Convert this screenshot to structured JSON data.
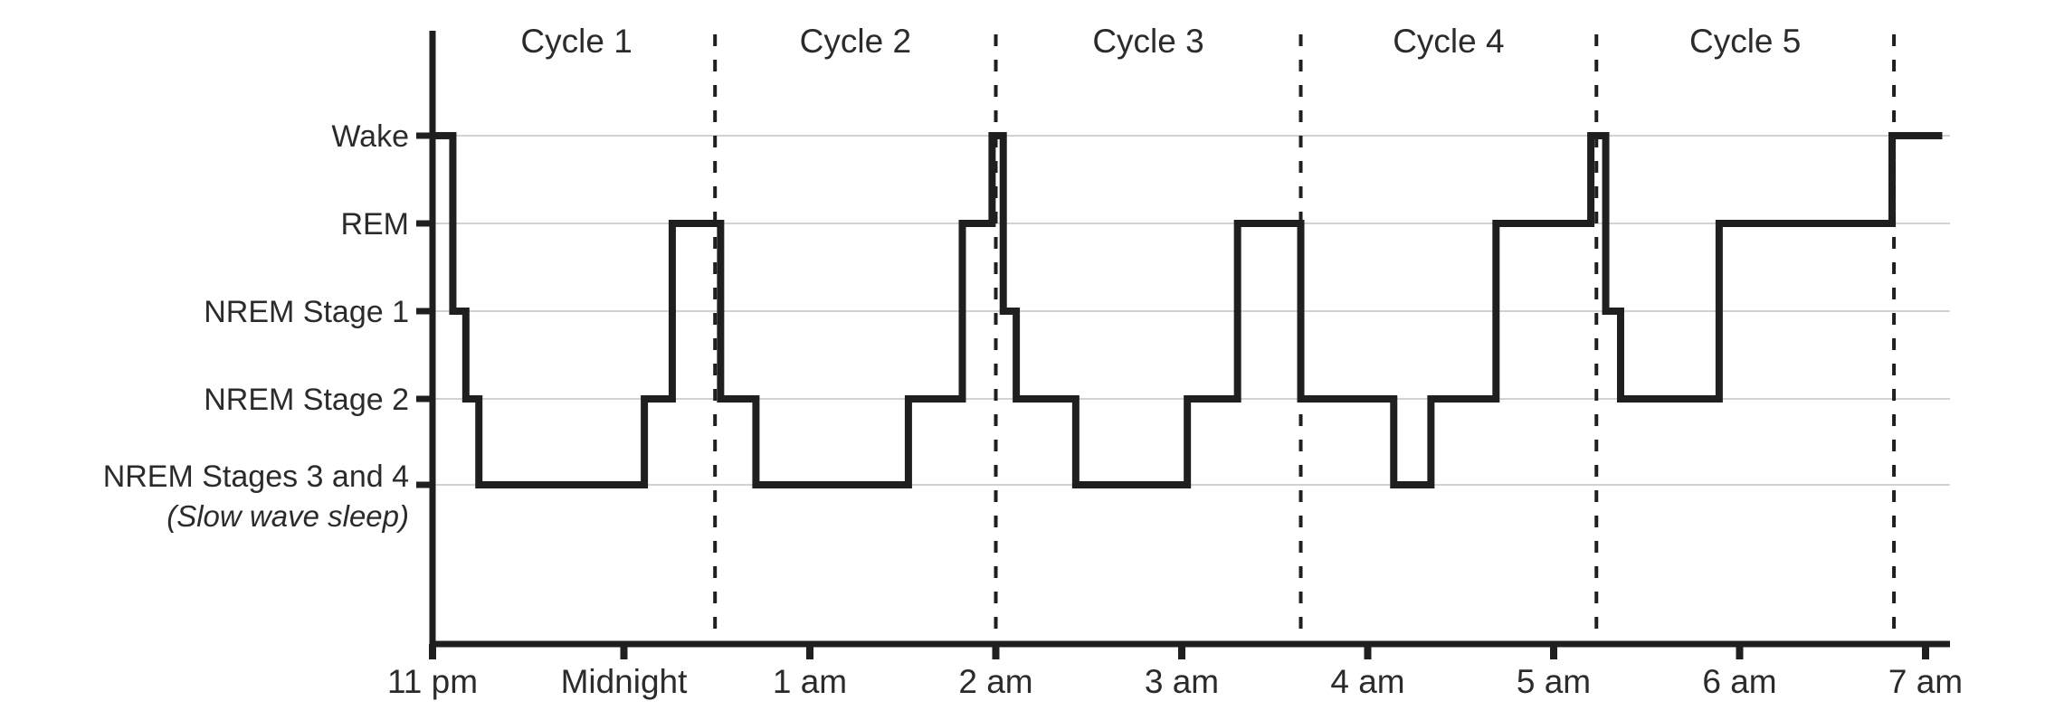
{
  "figure": {
    "description": "Hypnogram step chart of sleep stages through five sleep cycles, 11 pm to 7 am"
  },
  "chart_data": {
    "type": "line",
    "variant": "step-hypnogram",
    "grid": true,
    "legend": false,
    "background": "#ffffff",
    "line_color": "#1f1f1f",
    "gridline_color": "#c4c4c4",
    "dashed_line_color": "#1f1f1f",
    "text_color": "#2b2b2b",
    "x_axis": {
      "unit": "clock time",
      "hours_after_11pm_range": [
        0,
        8
      ],
      "tick_hours": [
        0,
        1,
        2,
        3,
        4,
        5,
        6,
        7,
        8
      ],
      "tick_labels": [
        "11 pm",
        "Midnight",
        "1 am",
        "2 am",
        "3 am",
        "4 am",
        "5 am",
        "6 am",
        "7 am"
      ]
    },
    "y_axis": {
      "levels": [
        {
          "id": "Wake",
          "label": "Wake"
        },
        {
          "id": "REM",
          "label": "REM"
        },
        {
          "id": "NREM1",
          "label": "NREM Stage 1"
        },
        {
          "id": "NREM2",
          "label": "NREM Stage 2"
        },
        {
          "id": "NREM34",
          "label": "NREM Stages 3 and 4",
          "sublabel": "(Slow wave sleep)"
        }
      ]
    },
    "cycles": [
      {
        "label": "Cycle 1",
        "end_hour": 1.49,
        "end_clock": "12:29 am"
      },
      {
        "label": "Cycle 2",
        "end_hour": 3.0,
        "end_clock": "2:00 am"
      },
      {
        "label": "Cycle 3",
        "end_hour": 4.64,
        "end_clock": "3:38 am"
      },
      {
        "label": "Cycle 4",
        "end_hour": 6.23,
        "end_clock": "5:14 am"
      },
      {
        "label": "Cycle 5",
        "end_hour": 7.83,
        "end_clock": "6:50 am"
      }
    ],
    "segments": [
      {
        "stage": "Wake",
        "start_hour": 0.0,
        "end_hour": 0.08,
        "start_clock": "11:00 pm",
        "end_clock": "11:05 pm"
      },
      {
        "stage": "NREM1",
        "start_hour": 0.08,
        "end_hour": 0.15,
        "start_clock": "11:05 pm",
        "end_clock": "11:09 pm"
      },
      {
        "stage": "NREM2",
        "start_hour": 0.15,
        "end_hour": 0.22,
        "start_clock": "11:09 pm",
        "end_clock": "11:13 pm"
      },
      {
        "stage": "NREM34",
        "start_hour": 0.22,
        "end_hour": 1.11,
        "start_clock": "11:13 pm",
        "end_clock": "12:07 am"
      },
      {
        "stage": "NREM2",
        "start_hour": 1.11,
        "end_hour": 1.26,
        "start_clock": "12:07 am",
        "end_clock": "12:16 am"
      },
      {
        "stage": "REM",
        "start_hour": 1.26,
        "end_hour": 1.52,
        "start_clock": "12:16 am",
        "end_clock": "12:31 am"
      },
      {
        "stage": "NREM2",
        "start_hour": 1.52,
        "end_hour": 1.71,
        "start_clock": "12:31 am",
        "end_clock": "12:43 am"
      },
      {
        "stage": "NREM34",
        "start_hour": 1.71,
        "end_hour": 2.53,
        "start_clock": "12:43 am",
        "end_clock": "1:32 am"
      },
      {
        "stage": "NREM2",
        "start_hour": 2.53,
        "end_hour": 2.82,
        "start_clock": "1:32 am",
        "end_clock": "1:49 am"
      },
      {
        "stage": "REM",
        "start_hour": 2.82,
        "end_hour": 2.98,
        "start_clock": "1:49 am",
        "end_clock": "1:59 am"
      },
      {
        "stage": "Wake",
        "start_hour": 2.98,
        "end_hour": 3.04,
        "start_clock": "1:59 am",
        "end_clock": "2:02 am"
      },
      {
        "stage": "NREM1",
        "start_hour": 3.04,
        "end_hour": 3.11,
        "start_clock": "2:02 am",
        "end_clock": "2:07 am"
      },
      {
        "stage": "NREM2",
        "start_hour": 3.11,
        "end_hour": 3.43,
        "start_clock": "2:07 am",
        "end_clock": "2:26 am"
      },
      {
        "stage": "NREM34",
        "start_hour": 3.43,
        "end_hour": 4.03,
        "start_clock": "2:26 am",
        "end_clock": "3:02 am"
      },
      {
        "stage": "NREM2",
        "start_hour": 4.03,
        "end_hour": 4.3,
        "start_clock": "3:02 am",
        "end_clock": "3:18 am"
      },
      {
        "stage": "REM",
        "start_hour": 4.3,
        "end_hour": 4.64,
        "start_clock": "3:18 am",
        "end_clock": "3:38 am"
      },
      {
        "stage": "NREM2",
        "start_hour": 4.64,
        "end_hour": 5.14,
        "start_clock": "3:38 am",
        "end_clock": "4:08 am"
      },
      {
        "stage": "NREM34",
        "start_hour": 5.14,
        "end_hour": 5.34,
        "start_clock": "4:08 am",
        "end_clock": "4:20 am"
      },
      {
        "stage": "NREM2",
        "start_hour": 5.34,
        "end_hour": 5.69,
        "start_clock": "4:20 am",
        "end_clock": "4:41 am"
      },
      {
        "stage": "REM",
        "start_hour": 5.69,
        "end_hour": 6.2,
        "start_clock": "4:41 am",
        "end_clock": "5:12 am"
      },
      {
        "stage": "Wake",
        "start_hour": 6.2,
        "end_hour": 6.28,
        "start_clock": "5:12 am",
        "end_clock": "5:17 am"
      },
      {
        "stage": "NREM1",
        "start_hour": 6.28,
        "end_hour": 6.36,
        "start_clock": "5:17 am",
        "end_clock": "5:21 am"
      },
      {
        "stage": "NREM2",
        "start_hour": 6.36,
        "end_hour": 6.89,
        "start_clock": "5:21 am",
        "end_clock": "5:53 am"
      },
      {
        "stage": "REM",
        "start_hour": 6.89,
        "end_hour": 7.82,
        "start_clock": "5:53 am",
        "end_clock": "6:49 am"
      },
      {
        "stage": "Wake",
        "start_hour": 7.82,
        "end_hour": 8.09,
        "start_clock": "6:49 am",
        "end_clock": "7:05 am"
      }
    ]
  }
}
